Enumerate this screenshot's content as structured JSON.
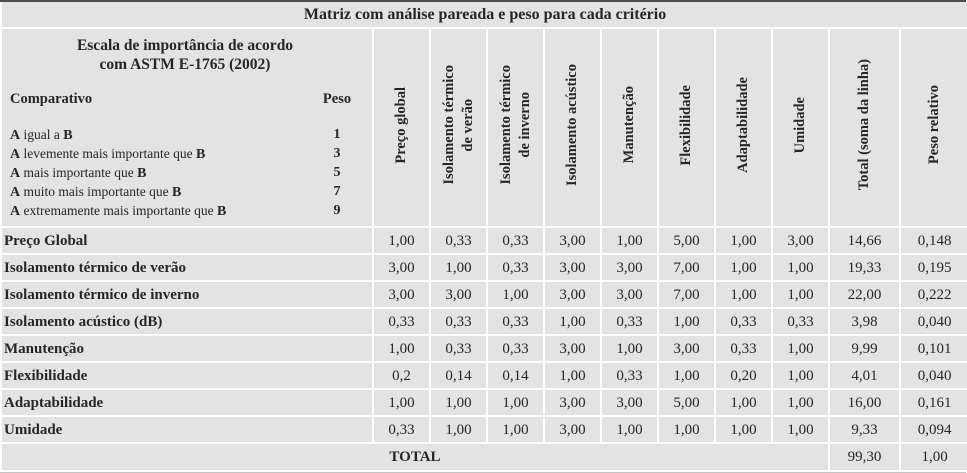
{
  "title": "Matriz com análise pareada e peso para cada critério",
  "scale": {
    "heading": "Escala de importância de acordo\ncom ASTM E-1765 (2002)",
    "comparativo_label": "Comparativo",
    "peso_label": "Peso",
    "items": [
      {
        "pre": "A",
        "mid": " igual a ",
        "suf": "B",
        "peso": "1"
      },
      {
        "pre": "A",
        "mid": " levemente mais importante que ",
        "suf": "B",
        "peso": "3"
      },
      {
        "pre": "A",
        "mid": " mais importante que ",
        "suf": "B",
        "peso": "5"
      },
      {
        "pre": "A",
        "mid": " muito mais importante que ",
        "suf": "B",
        "peso": "7"
      },
      {
        "pre": "A",
        "mid": " extremamente mais importante que ",
        "suf": "B",
        "peso": "9"
      }
    ]
  },
  "columns": [
    "Preço global",
    "Isolamento térmico\nde verão",
    "Isolamento térmico\nde inverno",
    "Isolamento acústico",
    "Manutenção",
    "Flexibilidade",
    "Adaptabilidade",
    "Umidade",
    "Total (soma da linha)",
    "Peso relativo"
  ],
  "rows": [
    {
      "label": "Preço Global",
      "values": [
        "1,00",
        "0,33",
        "0,33",
        "3,00",
        "1,00",
        "5,00",
        "1,00",
        "3,00"
      ],
      "total": "14,66",
      "peso": "0,148"
    },
    {
      "label": "Isolamento térmico de verão",
      "values": [
        "3,00",
        "1,00",
        "0,33",
        "3,00",
        "3,00",
        "7,00",
        "1,00",
        "1,00"
      ],
      "total": "19,33",
      "peso": "0,195"
    },
    {
      "label": "Isolamento térmico de inverno",
      "values": [
        "3,00",
        "3,00",
        "1,00",
        "3,00",
        "3,00",
        "7,00",
        "1,00",
        "1,00"
      ],
      "total": "22,00",
      "peso": "0,222"
    },
    {
      "label": "Isolamento acústico (dB)",
      "values": [
        "0,33",
        "0,33",
        "0,33",
        "1,00",
        "0,33",
        "1,00",
        "0,33",
        "0,33"
      ],
      "total": "3,98",
      "peso": "0,040"
    },
    {
      "label": "Manutenção",
      "values": [
        "1,00",
        "0,33",
        "0,33",
        "3,00",
        "1,00",
        "3,00",
        "0,33",
        "1,00"
      ],
      "total": "9,99",
      "peso": "0,101"
    },
    {
      "label": "Flexibilidade",
      "values": [
        "0,2",
        "0,14",
        "0,14",
        "1,00",
        "0,33",
        "1,00",
        "0,20",
        "1,00"
      ],
      "total": "4,01",
      "peso": "0,040"
    },
    {
      "label": "Adaptabilidade",
      "values": [
        "1,00",
        "1,00",
        "1,00",
        "3,00",
        "3,00",
        "5,00",
        "1,00",
        "1,00"
      ],
      "total": "16,00",
      "peso": "0,161"
    },
    {
      "label": "Umidade",
      "values": [
        "0,33",
        "1,00",
        "1,00",
        "3,00",
        "1,00",
        "1,00",
        "1,00",
        "1,00"
      ],
      "total": "9,33",
      "peso": "0,094"
    }
  ],
  "total_row": {
    "label": "TOTAL",
    "total": "99,30",
    "peso": "1,00"
  },
  "colors": {
    "cell_bg": "#e3e3e3",
    "separator": "#ffffff",
    "text": "#262626",
    "top_border": "#4d4d4d"
  }
}
